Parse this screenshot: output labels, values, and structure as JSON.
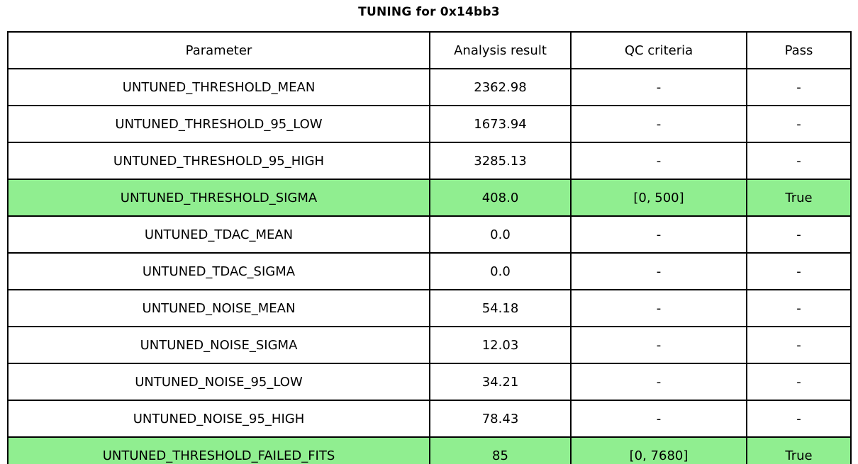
{
  "chart_data": {
    "type": "table",
    "title": "TUNING for 0x14bb3",
    "columns": [
      "Parameter",
      "Analysis result",
      "QC criteria",
      "Pass"
    ],
    "rows": [
      [
        "UNTUNED_THRESHOLD_MEAN",
        "2362.98",
        "-",
        "-"
      ],
      [
        "UNTUNED_THRESHOLD_95_LOW",
        "1673.94",
        "-",
        "-"
      ],
      [
        "UNTUNED_THRESHOLD_95_HIGH",
        "3285.13",
        "-",
        "-"
      ],
      [
        "UNTUNED_THRESHOLD_SIGMA",
        "408.0",
        "[0, 500]",
        "True"
      ],
      [
        "UNTUNED_TDAC_MEAN",
        "0.0",
        "-",
        "-"
      ],
      [
        "UNTUNED_TDAC_SIGMA",
        "0.0",
        "-",
        "-"
      ],
      [
        "UNTUNED_NOISE_MEAN",
        "54.18",
        "-",
        "-"
      ],
      [
        "UNTUNED_NOISE_SIGMA",
        "12.03",
        "-",
        "-"
      ],
      [
        "UNTUNED_NOISE_95_LOW",
        "34.21",
        "-",
        "-"
      ],
      [
        "UNTUNED_NOISE_95_HIGH",
        "78.43",
        "-",
        "-"
      ],
      [
        "UNTUNED_THRESHOLD_FAILED_FITS",
        "85",
        "[0, 7680]",
        "True"
      ]
    ],
    "highlighted_row_indices": [
      3,
      10
    ],
    "layout": {
      "grid": true,
      "header_row": true,
      "legend": "none"
    }
  },
  "colors": {
    "highlight_green": "#90EE90",
    "border": "#000000",
    "text": "#000000",
    "background": "#FFFFFF"
  }
}
